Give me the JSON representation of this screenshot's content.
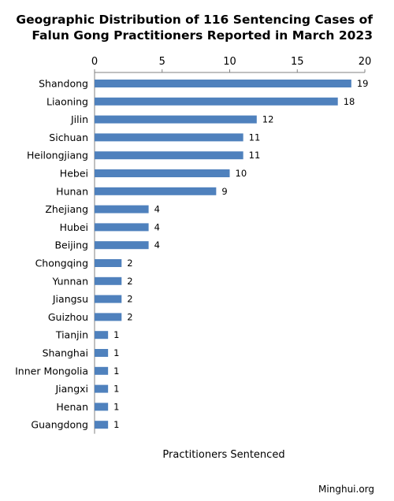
{
  "chart_data": {
    "type": "bar",
    "orientation": "horizontal",
    "title_lines": [
      "Geographic Distribution of 116 Sentencing Cases of",
      "Falun Gong Practitioners Reported in March 2023"
    ],
    "categories": [
      "Shandong",
      "Liaoning",
      "Jilin",
      "Sichuan",
      "Heilongjiang",
      "Hebei",
      "Hunan",
      "Zhejiang",
      "Hubei",
      "Beijing",
      "Chongqing",
      "Yunnan",
      "Jiangsu",
      "Guizhou",
      "Tianjin",
      "Shanghai",
      "Inner Mongolia",
      "Jiangxi",
      "Henan",
      "Guangdong"
    ],
    "values": [
      19,
      18,
      12,
      11,
      11,
      10,
      9,
      4,
      4,
      4,
      2,
      2,
      2,
      2,
      1,
      1,
      1,
      1,
      1,
      1
    ],
    "xlabel": "Practitioners Sentenced",
    "xlim": [
      0,
      20
    ],
    "xticks": [
      0,
      5,
      10,
      15,
      20
    ],
    "axis_position": "top",
    "grid": false,
    "legend": "none",
    "bar_color": "#4f81bd",
    "data_labels": true
  },
  "credit": "Minghui.org"
}
